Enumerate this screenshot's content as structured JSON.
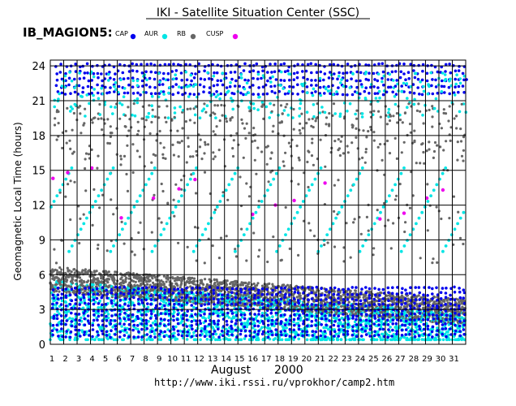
{
  "header": {
    "title": "IKI - Satellite Situation Center (SSC)",
    "satellite": "IB_MAGION5:"
  },
  "footer": {
    "url": "http://www.iki.rssi.ru/vprokhor/camp2.htm"
  },
  "chart_data": {
    "type": "scatter",
    "ylabel": "Geomagnetic Local Time (hours)",
    "xlabel_month": "August",
    "xlabel_year": "2000",
    "ylim": [
      0,
      24.5
    ],
    "y_ticks": [
      0,
      3,
      6,
      9,
      12,
      15,
      18,
      21,
      24
    ],
    "x_days": [
      "1",
      "2",
      "3",
      "4",
      "5",
      "6",
      "7",
      "8",
      "9",
      "10",
      "11",
      "12",
      "13",
      "14",
      "15",
      "16",
      "17",
      "18",
      "19",
      "20",
      "21",
      "22",
      "23",
      "24",
      "25",
      "26",
      "27",
      "28",
      "29",
      "30",
      "31"
    ],
    "grid": true,
    "legend_position": "top",
    "series": [
      {
        "name": "CAP",
        "color": "#0000ee"
      },
      {
        "name": "AUR",
        "color": "#00e5e5"
      },
      {
        "name": "RB",
        "color": "#666666"
      },
      {
        "name": "CUSP",
        "color": "#ee00ee"
      }
    ]
  }
}
